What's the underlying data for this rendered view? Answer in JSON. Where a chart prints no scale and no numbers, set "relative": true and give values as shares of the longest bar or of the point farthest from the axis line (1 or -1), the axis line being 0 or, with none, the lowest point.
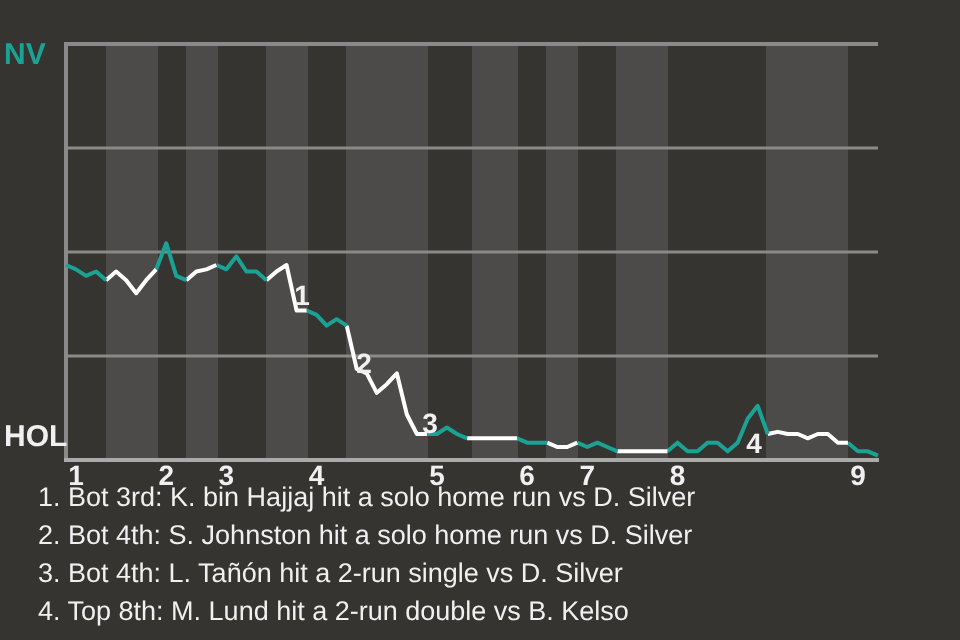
{
  "chart_data": {
    "type": "line",
    "relative": true,
    "categories": [
      null,
      "1",
      null,
      null,
      null,
      null,
      null,
      null,
      null,
      null,
      "2",
      null,
      null,
      null,
      null,
      null,
      "3",
      null,
      null,
      null,
      null,
      null,
      null,
      null,
      null,
      "4",
      null,
      null,
      null,
      null,
      null,
      null,
      null,
      null,
      null,
      null,
      null,
      "5",
      null,
      null,
      null,
      null,
      null,
      null,
      null,
      null,
      "6",
      null,
      null,
      null,
      null,
      null,
      "7",
      null,
      null,
      null,
      null,
      null,
      null,
      null,
      null,
      "8",
      null,
      null,
      null,
      null,
      null,
      null,
      null,
      null,
      null,
      null,
      null,
      null,
      null,
      null,
      null,
      null,
      null,
      "9",
      null,
      null
    ],
    "series": [
      {
        "color": "#1aa394",
        "values": [
          0.9,
          0.88,
          0.85,
          0.87,
          0.83,
          null,
          null,
          null,
          null,
          null,
          null,
          null,
          null,
          null,
          null,
          null,
          null,
          null,
          null,
          null,
          null,
          null,
          null,
          null,
          null,
          null,
          null,
          null,
          null,
          null,
          null,
          null,
          null,
          null,
          null,
          null,
          null,
          null,
          null,
          null,
          null,
          null,
          null,
          null,
          null,
          null,
          null,
          null,
          null,
          null,
          null,
          null,
          null,
          null,
          null,
          null,
          null,
          null,
          null,
          null,
          null,
          null,
          null,
          null,
          null,
          null,
          null,
          null,
          null,
          null,
          null,
          null,
          null,
          null,
          null,
          null,
          null,
          null,
          null,
          null,
          null,
          null
        ]
      },
      {
        "color": "#ffffff",
        "values": [
          null,
          null,
          null,
          null,
          0.83,
          0.87,
          0.83,
          0.77,
          0.83,
          0.88,
          null,
          null,
          null,
          null,
          null,
          null,
          null,
          null,
          null,
          null,
          null,
          null,
          null,
          null,
          null,
          null,
          null,
          null,
          null,
          null,
          null,
          null,
          null,
          null,
          null,
          null,
          null,
          null,
          null,
          null,
          null,
          null,
          null,
          null,
          null,
          null,
          null,
          null,
          null,
          null,
          null,
          null,
          null,
          null,
          null,
          null,
          null,
          null,
          null,
          null,
          null,
          null,
          null,
          null,
          null,
          null,
          null,
          null,
          null,
          null,
          null,
          null,
          null,
          null,
          null,
          null,
          null,
          null,
          null,
          null,
          null,
          null
        ]
      },
      {
        "color": "#1aa394",
        "values": [
          null,
          null,
          null,
          null,
          null,
          null,
          null,
          null,
          null,
          0.88,
          1,
          0.85,
          0.83,
          null,
          null,
          null,
          null,
          null,
          null,
          null,
          null,
          null,
          null,
          null,
          null,
          null,
          null,
          null,
          null,
          null,
          null,
          null,
          null,
          null,
          null,
          null,
          null,
          null,
          null,
          null,
          null,
          null,
          null,
          null,
          null,
          null,
          null,
          null,
          null,
          null,
          null,
          null,
          null,
          null,
          null,
          null,
          null,
          null,
          null,
          null,
          null,
          null,
          null,
          null,
          null,
          null,
          null,
          null,
          null,
          null,
          null,
          null,
          null,
          null,
          null,
          null,
          null,
          null,
          null,
          null,
          null,
          null
        ]
      },
      {
        "color": "#ffffff",
        "values": [
          null,
          null,
          null,
          null,
          null,
          null,
          null,
          null,
          null,
          null,
          null,
          null,
          0.83,
          0.87,
          0.88,
          0.9,
          null,
          null,
          null,
          null,
          null,
          null,
          null,
          null,
          null,
          null,
          null,
          null,
          null,
          null,
          null,
          null,
          null,
          null,
          null,
          null,
          null,
          null,
          null,
          null,
          null,
          null,
          null,
          null,
          null,
          null,
          null,
          null,
          null,
          null,
          null,
          null,
          null,
          null,
          null,
          null,
          null,
          null,
          null,
          null,
          null,
          null,
          null,
          null,
          null,
          null,
          null,
          null,
          null,
          null,
          null,
          null,
          null,
          null,
          null,
          null,
          null,
          null,
          null,
          null,
          null,
          null
        ]
      },
      {
        "color": "#1aa394",
        "values": [
          null,
          null,
          null,
          null,
          null,
          null,
          null,
          null,
          null,
          null,
          null,
          null,
          null,
          null,
          null,
          0.9,
          0.88,
          0.94,
          0.87,
          0.87,
          0.83,
          null,
          null,
          null,
          null,
          null,
          null,
          null,
          null,
          null,
          null,
          null,
          null,
          null,
          null,
          null,
          null,
          null,
          null,
          null,
          null,
          null,
          null,
          null,
          null,
          null,
          null,
          null,
          null,
          null,
          null,
          null,
          null,
          null,
          null,
          null,
          null,
          null,
          null,
          null,
          null,
          null,
          null,
          null,
          null,
          null,
          null,
          null,
          null,
          null,
          null,
          null,
          null,
          null,
          null,
          null,
          null,
          null,
          null,
          null,
          null,
          null
        ]
      },
      {
        "color": "#ffffff",
        "values": [
          null,
          null,
          null,
          null,
          null,
          null,
          null,
          null,
          null,
          null,
          null,
          null,
          null,
          null,
          null,
          null,
          null,
          null,
          null,
          null,
          0.83,
          0.87,
          0.9,
          0.69,
          0.69,
          null,
          null,
          null,
          null,
          null,
          null,
          null,
          null,
          null,
          null,
          null,
          null,
          null,
          null,
          null,
          null,
          null,
          null,
          null,
          null,
          null,
          null,
          null,
          null,
          null,
          null,
          null,
          null,
          null,
          null,
          null,
          null,
          null,
          null,
          null,
          null,
          null,
          null,
          null,
          null,
          null,
          null,
          null,
          null,
          null,
          null,
          null,
          null,
          null,
          null,
          null,
          null,
          null,
          null,
          null,
          null,
          null
        ]
      },
      {
        "color": "#1aa394",
        "values": [
          null,
          null,
          null,
          null,
          null,
          null,
          null,
          null,
          null,
          null,
          null,
          null,
          null,
          null,
          null,
          null,
          null,
          null,
          null,
          null,
          null,
          null,
          null,
          null,
          0.69,
          0.67,
          0.62,
          0.65,
          0.62,
          null,
          null,
          null,
          null,
          null,
          null,
          null,
          null,
          null,
          null,
          null,
          null,
          null,
          null,
          null,
          null,
          null,
          null,
          null,
          null,
          null,
          null,
          null,
          null,
          null,
          null,
          null,
          null,
          null,
          null,
          null,
          null,
          null,
          null,
          null,
          null,
          null,
          null,
          null,
          null,
          null,
          null,
          null,
          null,
          null,
          null,
          null,
          null,
          null,
          null,
          null,
          null,
          null
        ]
      },
      {
        "color": "#ffffff",
        "values": [
          null,
          null,
          null,
          null,
          null,
          null,
          null,
          null,
          null,
          null,
          null,
          null,
          null,
          null,
          null,
          null,
          null,
          null,
          null,
          null,
          null,
          null,
          null,
          null,
          null,
          null,
          null,
          null,
          0.62,
          0.42,
          0.4,
          0.31,
          0.35,
          0.4,
          0.21,
          0.12,
          0.12,
          null,
          null,
          null,
          null,
          null,
          null,
          null,
          null,
          null,
          null,
          null,
          null,
          null,
          null,
          null,
          null,
          null,
          null,
          null,
          null,
          null,
          null,
          null,
          null,
          null,
          null,
          null,
          null,
          null,
          null,
          null,
          null,
          null,
          null,
          null,
          null,
          null,
          null,
          null,
          null,
          null,
          null,
          null,
          null,
          null
        ]
      },
      {
        "color": "#1aa394",
        "values": [
          null,
          null,
          null,
          null,
          null,
          null,
          null,
          null,
          null,
          null,
          null,
          null,
          null,
          null,
          null,
          null,
          null,
          null,
          null,
          null,
          null,
          null,
          null,
          null,
          null,
          null,
          null,
          null,
          null,
          null,
          null,
          null,
          null,
          null,
          null,
          null,
          0.12,
          0.12,
          0.15,
          0.12,
          0.1,
          null,
          null,
          null,
          null,
          null,
          null,
          null,
          null,
          null,
          null,
          null,
          null,
          null,
          null,
          null,
          null,
          null,
          null,
          null,
          null,
          null,
          null,
          null,
          null,
          null,
          null,
          null,
          null,
          null,
          null,
          null,
          null,
          null,
          null,
          null,
          null,
          null,
          null,
          null,
          null,
          null
        ]
      },
      {
        "color": "#ffffff",
        "values": [
          null,
          null,
          null,
          null,
          null,
          null,
          null,
          null,
          null,
          null,
          null,
          null,
          null,
          null,
          null,
          null,
          null,
          null,
          null,
          null,
          null,
          null,
          null,
          null,
          null,
          null,
          null,
          null,
          null,
          null,
          null,
          null,
          null,
          null,
          null,
          null,
          null,
          null,
          null,
          null,
          0.1,
          0.1,
          0.1,
          0.1,
          0.1,
          0.1,
          null,
          null,
          null,
          null,
          null,
          null,
          null,
          null,
          null,
          null,
          null,
          null,
          null,
          null,
          null,
          null,
          null,
          null,
          null,
          null,
          null,
          null,
          null,
          null,
          null,
          null,
          null,
          null,
          null,
          null,
          null,
          null,
          null,
          null,
          null,
          null
        ]
      },
      {
        "color": "#1aa394",
        "values": [
          null,
          null,
          null,
          null,
          null,
          null,
          null,
          null,
          null,
          null,
          null,
          null,
          null,
          null,
          null,
          null,
          null,
          null,
          null,
          null,
          null,
          null,
          null,
          null,
          null,
          null,
          null,
          null,
          null,
          null,
          null,
          null,
          null,
          null,
          null,
          null,
          null,
          null,
          null,
          null,
          null,
          null,
          null,
          null,
          null,
          0.1,
          0.08,
          0.08,
          0.08,
          null,
          null,
          null,
          null,
          null,
          null,
          null,
          null,
          null,
          null,
          null,
          null,
          null,
          null,
          null,
          null,
          null,
          null,
          null,
          null,
          null,
          null,
          null,
          null,
          null,
          null,
          null,
          null,
          null,
          null,
          null,
          null,
          null
        ]
      },
      {
        "color": "#ffffff",
        "values": [
          null,
          null,
          null,
          null,
          null,
          null,
          null,
          null,
          null,
          null,
          null,
          null,
          null,
          null,
          null,
          null,
          null,
          null,
          null,
          null,
          null,
          null,
          null,
          null,
          null,
          null,
          null,
          null,
          null,
          null,
          null,
          null,
          null,
          null,
          null,
          null,
          null,
          null,
          null,
          null,
          null,
          null,
          null,
          null,
          null,
          null,
          null,
          null,
          0.08,
          0.06,
          0.06,
          0.08,
          null,
          null,
          null,
          null,
          null,
          null,
          null,
          null,
          null,
          null,
          null,
          null,
          null,
          null,
          null,
          null,
          null,
          null,
          null,
          null,
          null,
          null,
          null,
          null,
          null,
          null,
          null,
          null,
          null,
          null
        ]
      },
      {
        "color": "#1aa394",
        "values": [
          null,
          null,
          null,
          null,
          null,
          null,
          null,
          null,
          null,
          null,
          null,
          null,
          null,
          null,
          null,
          null,
          null,
          null,
          null,
          null,
          null,
          null,
          null,
          null,
          null,
          null,
          null,
          null,
          null,
          null,
          null,
          null,
          null,
          null,
          null,
          null,
          null,
          null,
          null,
          null,
          null,
          null,
          null,
          null,
          null,
          null,
          null,
          null,
          null,
          null,
          null,
          0.08,
          0.06,
          0.08,
          0.06,
          0.04,
          null,
          null,
          null,
          null,
          null,
          null,
          null,
          null,
          null,
          null,
          null,
          null,
          null,
          null,
          null,
          null,
          null,
          null,
          null,
          null,
          null,
          null,
          null,
          null,
          null,
          null
        ]
      },
      {
        "color": "#ffffff",
        "values": [
          null,
          null,
          null,
          null,
          null,
          null,
          null,
          null,
          null,
          null,
          null,
          null,
          null,
          null,
          null,
          null,
          null,
          null,
          null,
          null,
          null,
          null,
          null,
          null,
          null,
          null,
          null,
          null,
          null,
          null,
          null,
          null,
          null,
          null,
          null,
          null,
          null,
          null,
          null,
          null,
          null,
          null,
          null,
          null,
          null,
          null,
          null,
          null,
          null,
          null,
          null,
          null,
          null,
          null,
          null,
          0.04,
          0.04,
          0.04,
          0.04,
          0.04,
          0.04,
          null,
          null,
          null,
          null,
          null,
          null,
          null,
          null,
          null,
          null,
          null,
          null,
          null,
          null,
          null,
          null,
          null,
          null,
          null,
          null,
          null
        ]
      },
      {
        "color": "#1aa394",
        "values": [
          null,
          null,
          null,
          null,
          null,
          null,
          null,
          null,
          null,
          null,
          null,
          null,
          null,
          null,
          null,
          null,
          null,
          null,
          null,
          null,
          null,
          null,
          null,
          null,
          null,
          null,
          null,
          null,
          null,
          null,
          null,
          null,
          null,
          null,
          null,
          null,
          null,
          null,
          null,
          null,
          null,
          null,
          null,
          null,
          null,
          null,
          null,
          null,
          null,
          null,
          null,
          null,
          null,
          null,
          null,
          null,
          null,
          null,
          null,
          null,
          0.04,
          0.08,
          0.04,
          0.04,
          0.08,
          0.08,
          0.04,
          0.08,
          0.19,
          0.25,
          0.12,
          null,
          null,
          null,
          null,
          null,
          null,
          null,
          null,
          null,
          null,
          null
        ]
      },
      {
        "color": "#ffffff",
        "values": [
          null,
          null,
          null,
          null,
          null,
          null,
          null,
          null,
          null,
          null,
          null,
          null,
          null,
          null,
          null,
          null,
          null,
          null,
          null,
          null,
          null,
          null,
          null,
          null,
          null,
          null,
          null,
          null,
          null,
          null,
          null,
          null,
          null,
          null,
          null,
          null,
          null,
          null,
          null,
          null,
          null,
          null,
          null,
          null,
          null,
          null,
          null,
          null,
          null,
          null,
          null,
          null,
          null,
          null,
          null,
          null,
          null,
          null,
          null,
          null,
          null,
          null,
          null,
          null,
          null,
          null,
          null,
          null,
          null,
          null,
          0.12,
          0.13,
          0.12,
          0.12,
          0.1,
          0.12,
          0.12,
          0.08,
          0.08,
          null,
          null,
          null
        ]
      },
      {
        "color": "#1aa394",
        "values": [
          null,
          null,
          null,
          null,
          null,
          null,
          null,
          null,
          null,
          null,
          null,
          null,
          null,
          null,
          null,
          null,
          null,
          null,
          null,
          null,
          null,
          null,
          null,
          null,
          null,
          null,
          null,
          null,
          null,
          null,
          null,
          null,
          null,
          null,
          null,
          null,
          null,
          null,
          null,
          null,
          null,
          null,
          null,
          null,
          null,
          null,
          null,
          null,
          null,
          null,
          null,
          null,
          null,
          null,
          null,
          null,
          null,
          null,
          null,
          null,
          null,
          null,
          null,
          null,
          null,
          null,
          null,
          null,
          null,
          null,
          null,
          null,
          null,
          null,
          null,
          null,
          null,
          null,
          0.08,
          0.04,
          0.04,
          0.02
        ]
      }
    ],
    "ref_lines": [
      {
        "axis": "y",
        "value": 0.48,
        "color": "#8a8a8a"
      },
      {
        "axis": "y",
        "value": 0.96,
        "color": "#8a8a8a"
      },
      {
        "axis": "y",
        "value": 1.44,
        "color": "#8a8a8a"
      }
    ],
    "marker": "none",
    "line_style": "solid",
    "annotations": [
      "NV",
      "HOL",
      "1",
      "2",
      "3",
      "4",
      "1. Bot 3rd: K. bin Hajjaj hit a solo home run vs D. Silver",
      "2. Bot 4th: S. Johnston hit a solo home run vs D. Silver",
      "3. Bot 4th: L. Tañón hit a 2-run single vs D. Silver",
      "4. Top 8th: M. Lund hit a 2-run double vs B. Kelso"
    ]
  }
}
